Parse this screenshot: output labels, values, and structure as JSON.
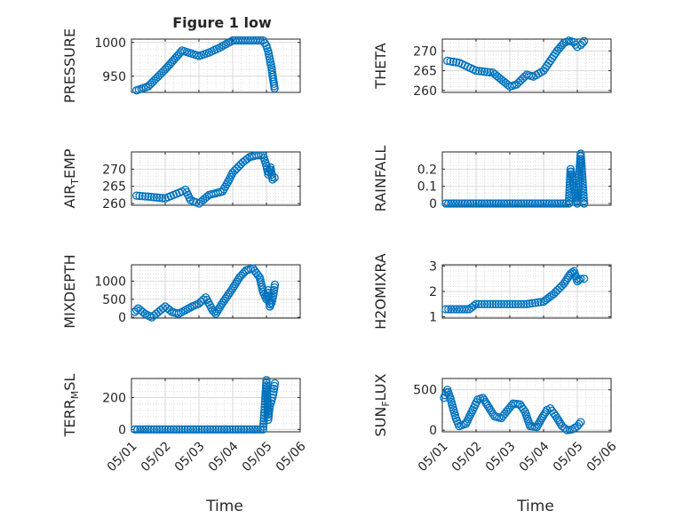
{
  "figure": {
    "title": "Figure 1 low"
  },
  "colors": {
    "marker": "#0072BD",
    "axis": "#262626",
    "grid": "#d9d9d9",
    "background": "#ffffff"
  },
  "chart_data": [
    {
      "type": "scatter",
      "title": "Figure 1 low",
      "ylabel": "PRESSURE",
      "xlabel": "",
      "xlim": [
        0,
        5
      ],
      "ylim": [
        926,
        1005
      ],
      "yticks": [
        950,
        1000
      ],
      "ytick_labels": [
        "950",
        "1000"
      ],
      "grid": true,
      "minor_grid": true,
      "x": [
        0.15,
        0.5,
        1.0,
        1.5,
        2.0,
        2.3,
        2.6,
        3.0,
        3.6,
        3.9,
        4.0,
        4.05,
        4.1,
        4.15,
        4.18,
        4.21,
        4.24
      ],
      "y": [
        929,
        935,
        960,
        988,
        980,
        985,
        992,
        1003,
        1003,
        1003,
        995,
        987,
        975,
        963,
        952,
        942,
        932
      ]
    },
    {
      "type": "scatter",
      "ylabel": "THETA",
      "xlabel": "",
      "xlim": [
        0,
        5
      ],
      "ylim": [
        259.5,
        273
      ],
      "yticks": [
        260,
        265,
        270
      ],
      "ytick_labels": [
        "260",
        "265",
        "270"
      ],
      "grid": true,
      "minor_grid": true,
      "x": [
        0.15,
        0.5,
        0.75,
        1.0,
        1.5,
        2.0,
        2.2,
        2.5,
        2.7,
        3.0,
        3.2,
        3.4,
        3.6,
        3.75,
        3.9,
        4.0,
        4.1,
        4.2
      ],
      "y": [
        267.5,
        267.0,
        266.0,
        265.0,
        264.5,
        261.0,
        261.5,
        264.0,
        263.5,
        265.0,
        267.5,
        270.0,
        272.0,
        272.6,
        272.2,
        271.0,
        271.5,
        272.5
      ]
    },
    {
      "type": "scatter",
      "ylabel": "AIR_TEMP",
      "ylabel_parts": [
        "AIR",
        "T",
        "EMP"
      ],
      "xlabel": "",
      "xlim": [
        0,
        5
      ],
      "ylim": [
        259.5,
        275
      ],
      "yticks": [
        260,
        265,
        270
      ],
      "ytick_labels": [
        "260",
        "265",
        "270"
      ],
      "grid": true,
      "minor_grid": true,
      "x": [
        0.15,
        0.5,
        1.0,
        1.25,
        1.5,
        1.6,
        1.75,
        2.0,
        2.3,
        2.5,
        2.7,
        2.9,
        3.0,
        3.3,
        3.5,
        3.7,
        3.9,
        4.0,
        4.05,
        4.12,
        4.18,
        4.24
      ],
      "y": [
        262.3,
        262.0,
        261.5,
        262.5,
        263.5,
        264.0,
        261.0,
        260.0,
        262.5,
        263.0,
        263.5,
        267.0,
        269.0,
        272.0,
        273.5,
        274.0,
        274.0,
        271.0,
        268.5,
        270.5,
        267.0,
        267.5
      ]
    },
    {
      "type": "scatter",
      "ylabel": "RAINFALL",
      "xlabel": "",
      "xlim": [
        0,
        5
      ],
      "ylim": [
        -0.01,
        0.3
      ],
      "yticks": [
        0,
        0.1,
        0.2
      ],
      "ytick_labels": [
        "0",
        "0.1",
        "0.2"
      ],
      "grid": true,
      "minor_grid": true,
      "x": [
        0.1,
        0.5,
        1.0,
        1.5,
        2.0,
        2.5,
        3.0,
        3.5,
        3.75,
        3.8,
        4.0,
        4.1,
        4.2
      ],
      "y": [
        0,
        0,
        0,
        0,
        0,
        0,
        0,
        0,
        0,
        0.2,
        0,
        0.29,
        0
      ]
    },
    {
      "type": "scatter",
      "ylabel": "MIXDEPTH",
      "xlabel": "",
      "xlim": [
        0,
        5
      ],
      "ylim": [
        -20,
        1450
      ],
      "yticks": [
        0,
        500,
        1000
      ],
      "ytick_labels": [
        "0",
        "500",
        "1000"
      ],
      "grid": true,
      "minor_grid": true,
      "x": [
        0.1,
        0.2,
        0.4,
        0.6,
        0.8,
        1.0,
        1.2,
        1.4,
        1.6,
        1.8,
        2.0,
        2.2,
        2.4,
        2.5,
        2.7,
        3.0,
        3.2,
        3.4,
        3.6,
        3.8,
        3.9,
        4.0,
        4.05,
        4.1,
        4.15,
        4.2,
        4.25
      ],
      "y": [
        150,
        250,
        100,
        0,
        150,
        300,
        150,
        100,
        200,
        300,
        380,
        550,
        200,
        100,
        400,
        800,
        1100,
        1300,
        1350,
        1100,
        700,
        500,
        750,
        300,
        400,
        600,
        900
      ]
    },
    {
      "type": "scatter",
      "ylabel": "H2OMIXRA",
      "xlabel": "",
      "xlim": [
        0,
        5
      ],
      "ylim": [
        0.95,
        3.05
      ],
      "yticks": [
        1,
        2,
        3
      ],
      "ytick_labels": [
        "1",
        "2",
        "3"
      ],
      "grid": true,
      "minor_grid": true,
      "x": [
        0.1,
        0.5,
        0.8,
        1.0,
        1.5,
        2.0,
        2.5,
        3.0,
        3.3,
        3.6,
        3.8,
        3.9,
        4.0,
        4.1,
        4.2
      ],
      "y": [
        1.3,
        1.3,
        1.3,
        1.5,
        1.5,
        1.5,
        1.5,
        1.6,
        1.9,
        2.3,
        2.7,
        2.8,
        2.4,
        2.5,
        2.5
      ]
    },
    {
      "type": "scatter",
      "ylabel": "TERR_MSL",
      "ylabel_parts": [
        "TERR",
        "M",
        "SL"
      ],
      "xlabel": "Time",
      "xlim": [
        0,
        5
      ],
      "ylim": [
        -15,
        320
      ],
      "yticks": [
        0,
        200
      ],
      "ytick_labels": [
        "0",
        "200"
      ],
      "xticks": [
        0,
        1,
        2,
        3,
        4,
        5
      ],
      "xtick_labels": [
        "05/01",
        "05/02",
        "05/03",
        "05/04",
        "05/05",
        "05/06"
      ],
      "grid": true,
      "minor_grid": true,
      "x": [
        0.1,
        0.5,
        1.0,
        1.5,
        2.0,
        2.5,
        3.0,
        3.5,
        3.9,
        3.95,
        4.0,
        4.05,
        4.1,
        4.15,
        4.2,
        4.25
      ],
      "y": [
        0,
        0,
        0,
        0,
        0,
        0,
        0,
        0,
        0,
        140,
        310,
        60,
        150,
        180,
        220,
        290
      ]
    },
    {
      "type": "scatter",
      "ylabel": "SUN_FLUX",
      "ylabel_parts": [
        "SUN",
        "F",
        "LUX"
      ],
      "xlabel": "Time",
      "xlim": [
        0,
        5
      ],
      "ylim": [
        -20,
        640
      ],
      "yticks": [
        0,
        500
      ],
      "ytick_labels": [
        "0",
        "500"
      ],
      "xticks": [
        0,
        1,
        2,
        3,
        4,
        5
      ],
      "xtick_labels": [
        "05/01",
        "05/02",
        "05/03",
        "05/04",
        "05/05",
        "05/06"
      ],
      "grid": true,
      "minor_grid": true,
      "x": [
        0.05,
        0.15,
        0.25,
        0.4,
        0.5,
        0.7,
        0.9,
        1.05,
        1.2,
        1.35,
        1.55,
        1.75,
        1.9,
        2.1,
        2.3,
        2.45,
        2.6,
        2.8,
        2.95,
        3.1,
        3.2,
        3.4,
        3.55,
        3.7,
        3.85,
        4.0,
        4.1
      ],
      "y": [
        400,
        500,
        380,
        150,
        50,
        80,
        250,
        380,
        400,
        300,
        170,
        150,
        230,
        330,
        320,
        230,
        50,
        40,
        150,
        250,
        270,
        150,
        50,
        0,
        10,
        50,
        100
      ]
    }
  ]
}
